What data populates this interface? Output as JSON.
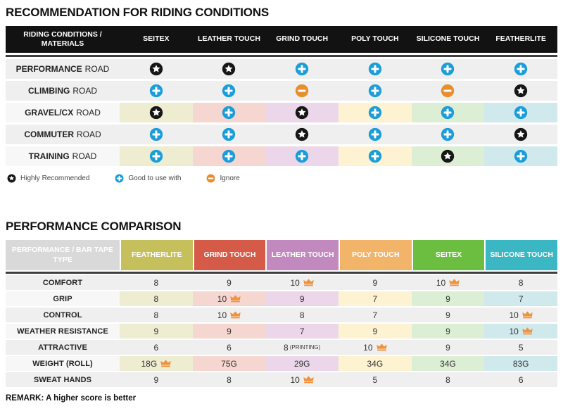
{
  "colors": {
    "table1_header_bg": "#121212",
    "divider_dark": "#3f3f3f",
    "row_gray": "#efefef",
    "row_label_light": "#f7f7f7",
    "t2_label_header_bg": "#d9d9d9",
    "star": "#161616",
    "plus": "#1b9dd9",
    "minus": "#e88e2c",
    "crown": "#f0923e",
    "pastels": [
      "#eeedd2",
      "#f6d6d0",
      "#ecd7ea",
      "#fdf3d2",
      "#dceed3",
      "#d0e9ed"
    ]
  },
  "s1": {
    "title": "RECOMMENDATION FOR RIDING CONDITIONS",
    "header_label": "RIDING CONDITIONS / MATERIALS",
    "columns": [
      "SEITEX",
      "LEATHER TOUCH",
      "GRIND TOUCH",
      "POLY TOUCH",
      "SILICONE TOUCH",
      "FEATHERLITE"
    ],
    "rows": [
      {
        "label_bold": "PERFORMANCE",
        "label_rest": "ROAD",
        "cells": [
          "star",
          "star",
          "plus",
          "plus",
          "plus",
          "plus"
        ]
      },
      {
        "label_bold": "CLIMBING",
        "label_rest": "ROAD",
        "cells": [
          "plus",
          "plus",
          "minus",
          "plus",
          "minus",
          "star"
        ]
      },
      {
        "label_bold": "GRAVEL/CX",
        "label_rest": "ROAD",
        "cells": [
          "star",
          "plus",
          "star",
          "plus",
          "plus",
          "plus"
        ]
      },
      {
        "label_bold": "COMMUTER",
        "label_rest": "ROAD",
        "cells": [
          "plus",
          "plus",
          "star",
          "plus",
          "plus",
          "star"
        ]
      },
      {
        "label_bold": "TRAINING",
        "label_rest": "ROAD",
        "cells": [
          "plus",
          "plus",
          "plus",
          "plus",
          "star",
          "plus"
        ]
      }
    ],
    "legend": [
      {
        "icon": "star",
        "label": "Highly Recommended"
      },
      {
        "icon": "plus",
        "label": "Good to use with"
      },
      {
        "icon": "minus",
        "label": "Ignore"
      }
    ]
  },
  "s2": {
    "title": "PERFORMANCE COMPARISON",
    "header_label": "PERFORMANCE / BAR TAPE TYPE",
    "columns": [
      {
        "label": "FEATHERLITE",
        "color": "#c5bf5c"
      },
      {
        "label": "GRIND TOUCH",
        "color": "#d65a48"
      },
      {
        "label": "LEATHER TOUCH",
        "color": "#c189be"
      },
      {
        "label": "POLY TOUCH",
        "color": "#f1b469"
      },
      {
        "label": "SEITEX",
        "color": "#6cbe40"
      },
      {
        "label": "SILICONE TOUCH",
        "color": "#3bb6c3"
      }
    ],
    "rows": [
      {
        "label": "COMFORT",
        "cells": [
          {
            "value": "8"
          },
          {
            "value": "9"
          },
          {
            "value": "10",
            "crown": true
          },
          {
            "value": "9"
          },
          {
            "value": "10",
            "crown": true
          },
          {
            "value": "8"
          }
        ]
      },
      {
        "label": "GRIP",
        "cells": [
          {
            "value": "8"
          },
          {
            "value": "10",
            "crown": true
          },
          {
            "value": "9"
          },
          {
            "value": "7"
          },
          {
            "value": "9"
          },
          {
            "value": "7"
          }
        ]
      },
      {
        "label": "CONTROL",
        "cells": [
          {
            "value": "8"
          },
          {
            "value": "10",
            "crown": true
          },
          {
            "value": "8"
          },
          {
            "value": "7"
          },
          {
            "value": "9"
          },
          {
            "value": "10",
            "crown": true
          }
        ]
      },
      {
        "label": "WEATHER RESISTANCE",
        "cells": [
          {
            "value": "9"
          },
          {
            "value": "9"
          },
          {
            "value": "7"
          },
          {
            "value": "9"
          },
          {
            "value": "9"
          },
          {
            "value": "10",
            "crown": true
          }
        ]
      },
      {
        "label": "ATTRACTIVE",
        "cells": [
          {
            "value": "6"
          },
          {
            "value": "6"
          },
          {
            "value": "8",
            "note": "(PRINTING)"
          },
          {
            "value": "10",
            "crown": true
          },
          {
            "value": "9"
          },
          {
            "value": "5"
          }
        ]
      },
      {
        "label": "WEIGHT (ROLL)",
        "cells": [
          {
            "value": "18G",
            "crown": true
          },
          {
            "value": "75G"
          },
          {
            "value": "29G"
          },
          {
            "value": "34G"
          },
          {
            "value": "34G"
          },
          {
            "value": "83G"
          }
        ]
      },
      {
        "label": "SWEAT HANDS",
        "cells": [
          {
            "value": "9"
          },
          {
            "value": "8"
          },
          {
            "value": "10",
            "crown": true
          },
          {
            "value": "5"
          },
          {
            "value": "8"
          },
          {
            "value": "6"
          }
        ]
      }
    ],
    "remark": "REMARK: A higher score is better"
  }
}
